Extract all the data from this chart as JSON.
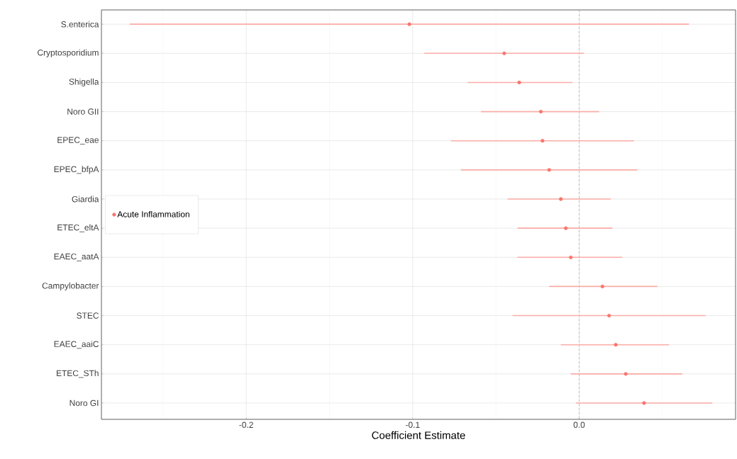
{
  "chart_data": {
    "type": "scatter",
    "orientation": "horizontal",
    "xlabel": "Coefficient Estimate",
    "categories": [
      "S.enterica",
      "Cryptosporidium",
      "Shigella",
      "Noro GII",
      "EPEC_eae",
      "EPEC_bfpA",
      "Giardia",
      "ETEC_eltA",
      "EAEC_aatA",
      "Campylobacter",
      "STEC",
      "EAEC_aaiC",
      "ETEC_STh",
      "Noro GI"
    ],
    "series": [
      {
        "name": "Acute Inflammation",
        "color": "#f8766d",
        "values": [
          -0.102,
          -0.045,
          -0.036,
          -0.023,
          -0.022,
          -0.018,
          -0.011,
          -0.008,
          -0.005,
          0.014,
          0.018,
          0.022,
          0.028,
          0.039
        ],
        "errors": [
          [
            -0.27,
            0.066
          ],
          [
            -0.093,
            0.003
          ],
          [
            -0.067,
            -0.004
          ],
          [
            -0.059,
            0.012
          ],
          [
            -0.077,
            0.033
          ],
          [
            -0.071,
            0.035
          ],
          [
            -0.043,
            0.019
          ],
          [
            -0.037,
            0.02
          ],
          [
            -0.037,
            0.026
          ],
          [
            -0.018,
            0.047
          ],
          [
            -0.04,
            0.076
          ],
          [
            -0.011,
            0.054
          ],
          [
            -0.005,
            0.062
          ],
          [
            -0.002,
            0.08
          ]
        ]
      }
    ],
    "xlim": [
      -0.287,
      0.094
    ],
    "xticks": [
      {
        "value": -0.25,
        "label": null
      },
      {
        "value": -0.2,
        "label": "-0.2"
      },
      {
        "value": -0.15,
        "label": null
      },
      {
        "value": -0.1,
        "label": "-0.1"
      },
      {
        "value": -0.05,
        "label": null
      },
      {
        "value": 0.0,
        "label": "0.0"
      },
      {
        "value": 0.05,
        "label": null
      }
    ],
    "ref_lines": [
      {
        "axis": "x",
        "value": 0,
        "color": "#aaaaaa",
        "line_style": "dashed"
      }
    ],
    "grid": true,
    "legend": "left",
    "marker": "circle"
  }
}
